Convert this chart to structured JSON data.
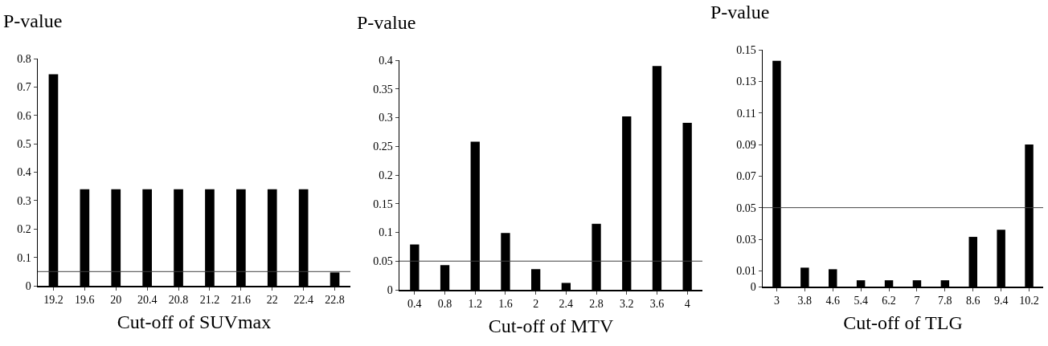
{
  "chart_data": [
    {
      "type": "bar",
      "ylabel": "P-value",
      "xlabel": "Cut-off of SUVmax",
      "categories": [
        "19.2",
        "19.6",
        "20",
        "20.4",
        "20.8",
        "21.2",
        "21.6",
        "22",
        "22.4",
        "22.8"
      ],
      "values": [
        0.745,
        0.34,
        0.34,
        0.34,
        0.34,
        0.34,
        0.34,
        0.34,
        0.34,
        0.047
      ],
      "color": "#000000",
      "ylim": [
        0,
        0.8
      ],
      "yticks": [
        0,
        0.1,
        0.2,
        0.3,
        0.4,
        0.5,
        0.6,
        0.7,
        0.8
      ],
      "grid": false,
      "ref_lines": [
        {
          "axis": "y",
          "value": 0.05,
          "color": "#404040"
        }
      ]
    },
    {
      "type": "bar",
      "ylabel": "P-value",
      "xlabel": "Cut-off of MTV",
      "categories": [
        "0.4",
        "0.8",
        "1.2",
        "1.6",
        "2",
        "2.4",
        "2.8",
        "3.2",
        "3.6",
        "4"
      ],
      "values": [
        0.079,
        0.043,
        0.258,
        0.099,
        0.036,
        0.012,
        0.115,
        0.302,
        0.39,
        0.291
      ],
      "color": "#000000",
      "ylim": [
        0,
        0.4
      ],
      "yticks": [
        0,
        0.05,
        0.1,
        0.15,
        0.2,
        0.25,
        0.3,
        0.35,
        0.4
      ],
      "grid": false,
      "ref_lines": [
        {
          "axis": "y",
          "value": 0.05,
          "color": "#404040"
        }
      ]
    },
    {
      "type": "bar",
      "ylabel": "P-value",
      "xlabel": "Cut-off of TLG",
      "categories": [
        "3",
        "3.8",
        "4.6",
        "5.4",
        "6.2",
        "7",
        "7.8",
        "8.6",
        "9.4",
        "10.2"
      ],
      "values": [
        0.143,
        0.012,
        0.011,
        0.004,
        0.004,
        0.004,
        0.004,
        0.0315,
        0.036,
        0.09
      ],
      "color": "#000000",
      "ylim": [
        0,
        0.15
      ],
      "yticks": [
        0,
        0.01,
        0.03,
        0.05,
        0.07,
        0.09,
        0.11,
        0.13,
        0.15
      ],
      "grid": false,
      "ref_lines": [
        {
          "axis": "y",
          "value": 0.05,
          "color": "#404040"
        }
      ]
    }
  ]
}
